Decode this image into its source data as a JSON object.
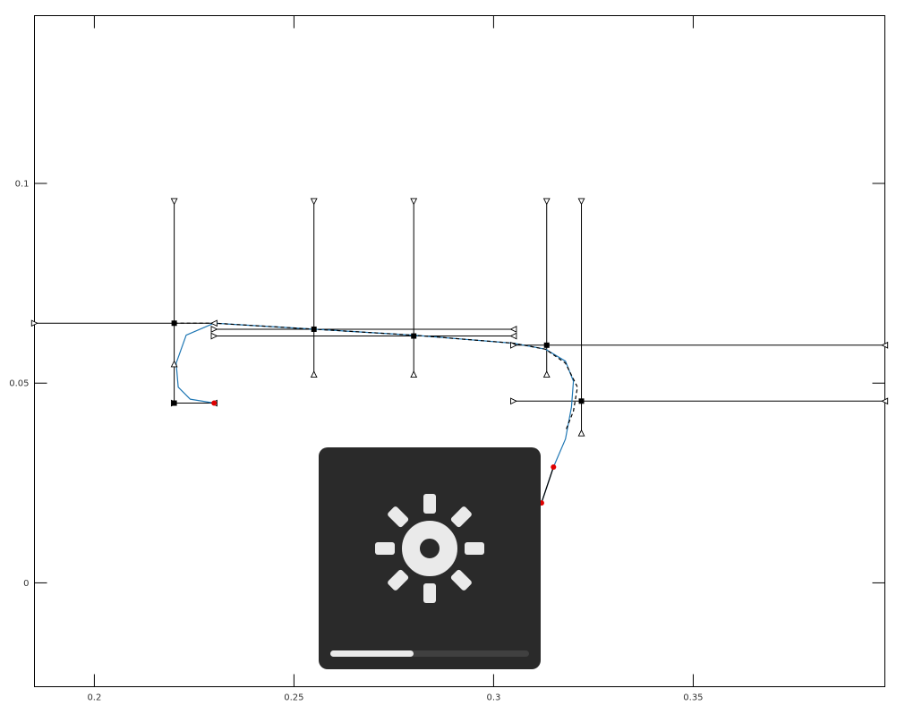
{
  "chart_data": {
    "type": "line",
    "title": "",
    "xlabel": "",
    "ylabel": "",
    "xlim": [
      0.185,
      0.398
    ],
    "ylim": [
      -0.026,
      0.142
    ],
    "x_ticks": [
      {
        "value": 0.2,
        "label": "0.2"
      },
      {
        "value": 0.25,
        "label": "0.25"
      },
      {
        "value": 0.3,
        "label": "0.3"
      },
      {
        "value": 0.35,
        "label": "0.35"
      }
    ],
    "y_ticks": [
      {
        "value": 0.1,
        "label": "0.1"
      },
      {
        "value": 0.05,
        "label": "0.05"
      },
      {
        "value": 0,
        "label": "0"
      }
    ],
    "grid": false,
    "series": [
      {
        "role": "curve",
        "color": "#1f77b4",
        "x": [
          0.23,
          0.224,
          0.221,
          0.2205,
          0.223,
          0.23,
          0.255,
          0.28,
          0.305,
          0.313,
          0.318,
          0.32,
          0.3195,
          0.318,
          0.315,
          0.312
        ],
        "y": [
          0.045,
          0.046,
          0.049,
          0.055,
          0.062,
          0.065,
          0.0635,
          0.062,
          0.06,
          0.0585,
          0.0555,
          0.0505,
          0.044,
          0.036,
          0.029,
          0.02
        ]
      },
      {
        "role": "reference",
        "color": "#000000",
        "dashed": true,
        "x": [
          0.22,
          0.23,
          0.255,
          0.28,
          0.305,
          0.313,
          0.318,
          0.321,
          0.32,
          0.318
        ],
        "y": [
          0.065,
          0.065,
          0.0635,
          0.062,
          0.06,
          0.0585,
          0.055,
          0.049,
          0.043,
          0.038
        ]
      },
      {
        "role": "end-segment",
        "color": "#000000",
        "x": [
          0.312,
          0.315
        ],
        "y": [
          0.02,
          0.029
        ]
      }
    ],
    "nodes": [
      {
        "x": 0.22,
        "y": 0.065
      },
      {
        "x": 0.255,
        "y": 0.0635
      },
      {
        "x": 0.28,
        "y": 0.0618
      },
      {
        "x": 0.3133,
        "y": 0.0595
      },
      {
        "x": 0.322,
        "y": 0.0455
      },
      {
        "x": 0.22,
        "y": 0.045
      }
    ],
    "endpoints": [
      {
        "x": 0.23,
        "y": 0.045
      },
      {
        "x": 0.315,
        "y": 0.029
      },
      {
        "x": 0.312,
        "y": 0.02
      }
    ],
    "error_bars": {
      "vertical": [
        {
          "x": 0.22,
          "ylow": 0.045,
          "yhigh": 0.0955,
          "mid": 0.0548
        },
        {
          "x": 0.255,
          "ylow": 0.0522,
          "yhigh": 0.0955
        },
        {
          "x": 0.28,
          "ylow": 0.0522,
          "yhigh": 0.0955
        },
        {
          "x": 0.3133,
          "ylow": 0.0522,
          "yhigh": 0.0955
        },
        {
          "x": 0.322,
          "ylow": 0.0375,
          "yhigh": 0.0955
        }
      ],
      "horizontal": [
        {
          "y": 0.065,
          "xlow": 0.185,
          "xhigh": 0.23
        },
        {
          "y": 0.0635,
          "xlow": 0.23,
          "xhigh": 0.305
        },
        {
          "y": 0.0618,
          "xlow": 0.23,
          "xhigh": 0.305
        },
        {
          "y": 0.0595,
          "xlow": 0.305,
          "xhigh": 0.398
        },
        {
          "y": 0.0455,
          "xlow": 0.305,
          "xhigh": 0.398
        },
        {
          "y": 0.045,
          "xlow": 0.22,
          "xhigh": 0.23
        }
      ]
    }
  },
  "osd": {
    "icon": "brightness-icon",
    "level": 0.42,
    "bg_color": "#2a2a2a",
    "fg_color": "#eaeaea"
  }
}
